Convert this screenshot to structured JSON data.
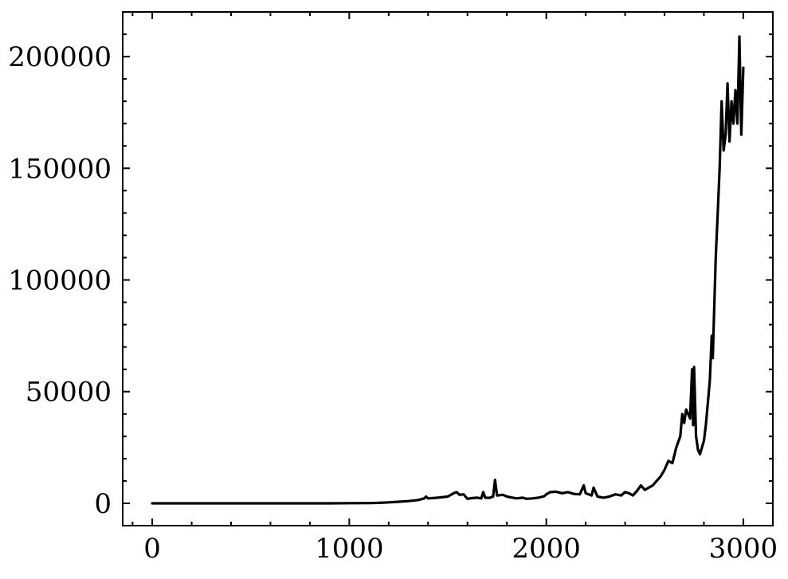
{
  "chart_data": {
    "type": "line",
    "title": "",
    "xlabel": "",
    "ylabel": "",
    "xlim": [
      -150,
      3150
    ],
    "ylim": [
      -10000,
      220000
    ],
    "xticks": [
      0,
      1000,
      2000,
      3000
    ],
    "xtick_labels": [
      "0",
      "1000",
      "2000",
      "3000"
    ],
    "x_minor_ticks": [
      -100,
      200,
      400,
      600,
      800,
      1200,
      1400,
      1600,
      1800,
      2200,
      2400,
      2600,
      2800
    ],
    "yticks": [
      0,
      50000,
      100000,
      150000,
      200000
    ],
    "ytick_labels": [
      "0",
      "50000",
      "100000",
      "150000",
      "200000"
    ],
    "y_minor_ticks": [
      10000,
      20000,
      30000,
      40000,
      60000,
      70000,
      80000,
      90000,
      110000,
      120000,
      130000,
      140000,
      160000,
      170000,
      180000,
      190000,
      210000
    ],
    "grid": false,
    "legend": "none",
    "colors": {
      "line": "#000000",
      "axes": "#000000",
      "background": "#ffffff"
    },
    "series": [
      {
        "x": [
          0,
          100,
          200,
          300,
          400,
          500,
          600,
          700,
          800,
          900,
          1000,
          1100,
          1150,
          1200,
          1250,
          1300,
          1350,
          1380,
          1390,
          1400,
          1450,
          1500,
          1530,
          1545,
          1560,
          1580,
          1600,
          1620,
          1650,
          1670,
          1680,
          1690,
          1710,
          1730,
          1740,
          1750,
          1780,
          1800,
          1830,
          1850,
          1880,
          1900,
          1930,
          1960,
          1990,
          2000,
          2020,
          2050,
          2080,
          2110,
          2140,
          2170,
          2190,
          2200,
          2230,
          2240,
          2260,
          2290,
          2320,
          2350,
          2380,
          2400,
          2420,
          2440,
          2460,
          2480,
          2500,
          2520,
          2540,
          2560,
          2580,
          2600,
          2620,
          2640,
          2660,
          2680,
          2690,
          2700,
          2710,
          2720,
          2730,
          2740,
          2745,
          2750,
          2760,
          2770,
          2780,
          2790,
          2800,
          2810,
          2820,
          2830,
          2840,
          2845,
          2850,
          2860,
          2870,
          2880,
          2890,
          2900,
          2910,
          2920,
          2930,
          2940,
          2950,
          2960,
          2970,
          2980,
          2990,
          3000
        ],
        "y": [
          0,
          0,
          0,
          0,
          0,
          0,
          0,
          0,
          0,
          0,
          50,
          100,
          200,
          400,
          700,
          1000,
          1500,
          2200,
          3000,
          2200,
          2500,
          3000,
          4500,
          5000,
          3800,
          4000,
          2000,
          2300,
          2500,
          2200,
          5000,
          2500,
          2400,
          3000,
          10500,
          3500,
          3800,
          3000,
          2500,
          2200,
          2500,
          2000,
          2200,
          2500,
          3200,
          4000,
          5000,
          5200,
          4500,
          5000,
          4200,
          4000,
          8000,
          4500,
          3500,
          7000,
          3000,
          2500,
          3000,
          4000,
          3500,
          5000,
          4500,
          3500,
          5500,
          8000,
          6000,
          7000,
          8000,
          10000,
          12000,
          15000,
          19000,
          18000,
          25000,
          30000,
          40000,
          36000,
          42000,
          40000,
          38000,
          60000,
          35000,
          61000,
          30000,
          24000,
          22000,
          25000,
          28000,
          35000,
          45000,
          55000,
          75000,
          65000,
          80000,
          110000,
          130000,
          150000,
          180000,
          158000,
          165000,
          188000,
          162000,
          180000,
          170000,
          185000,
          170000,
          209000,
          165000,
          195000
        ]
      }
    ]
  }
}
